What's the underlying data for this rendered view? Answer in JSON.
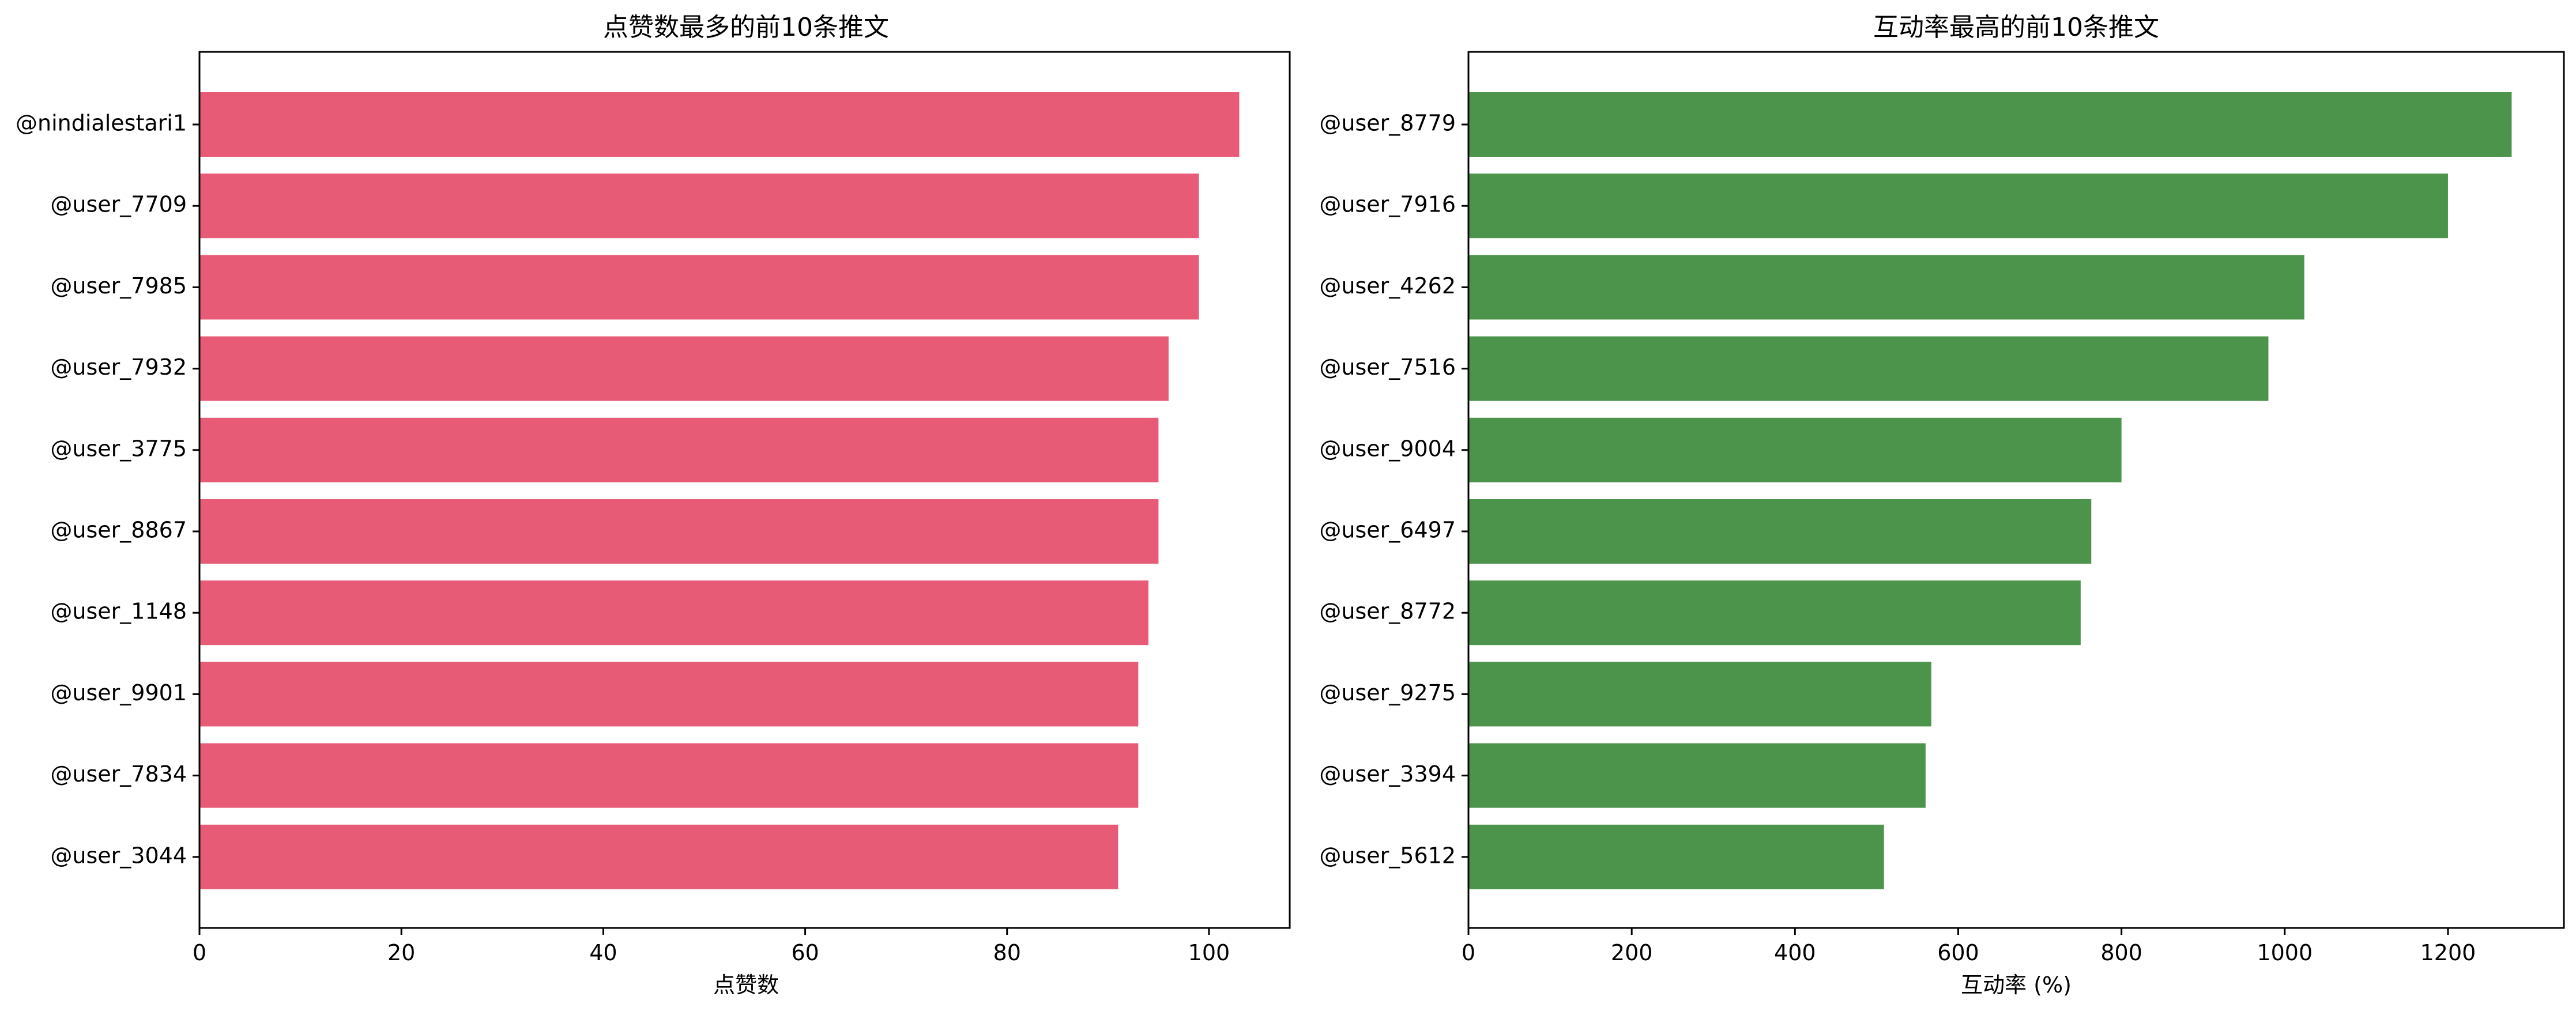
{
  "chart_data": [
    {
      "type": "bar",
      "orientation": "horizontal",
      "title": "点赞数最多的前10条推文",
      "xlabel": "点赞数",
      "ylabel": "",
      "xlim": [
        0,
        108
      ],
      "xticks": [
        0,
        20,
        40,
        60,
        80,
        100
      ],
      "categories": [
        "@nindialestari1",
        "@user_7709",
        "@user_7985",
        "@user_7932",
        "@user_3775",
        "@user_8867",
        "@user_1148",
        "@user_9901",
        "@user_7834",
        "@user_3044"
      ],
      "values": [
        103,
        99,
        99,
        96,
        95,
        95,
        94,
        93,
        93,
        91
      ],
      "color": "#e75b77",
      "grid": false
    },
    {
      "type": "bar",
      "orientation": "horizontal",
      "title": "互动率最高的前10条推文",
      "xlabel": "互动率 (%)",
      "ylabel": "",
      "xlim": [
        0,
        1342
      ],
      "xticks": [
        0,
        200,
        400,
        600,
        800,
        1000,
        1200
      ],
      "categories": [
        "@user_8779",
        "@user_7916",
        "@user_4262",
        "@user_7516",
        "@user_9004",
        "@user_6497",
        "@user_8772",
        "@user_9275",
        "@user_3394",
        "@user_5612"
      ],
      "values": [
        1278,
        1200,
        1024,
        980,
        800,
        763,
        750,
        567,
        560,
        509
      ],
      "color": "#4c934c",
      "grid": false
    }
  ]
}
